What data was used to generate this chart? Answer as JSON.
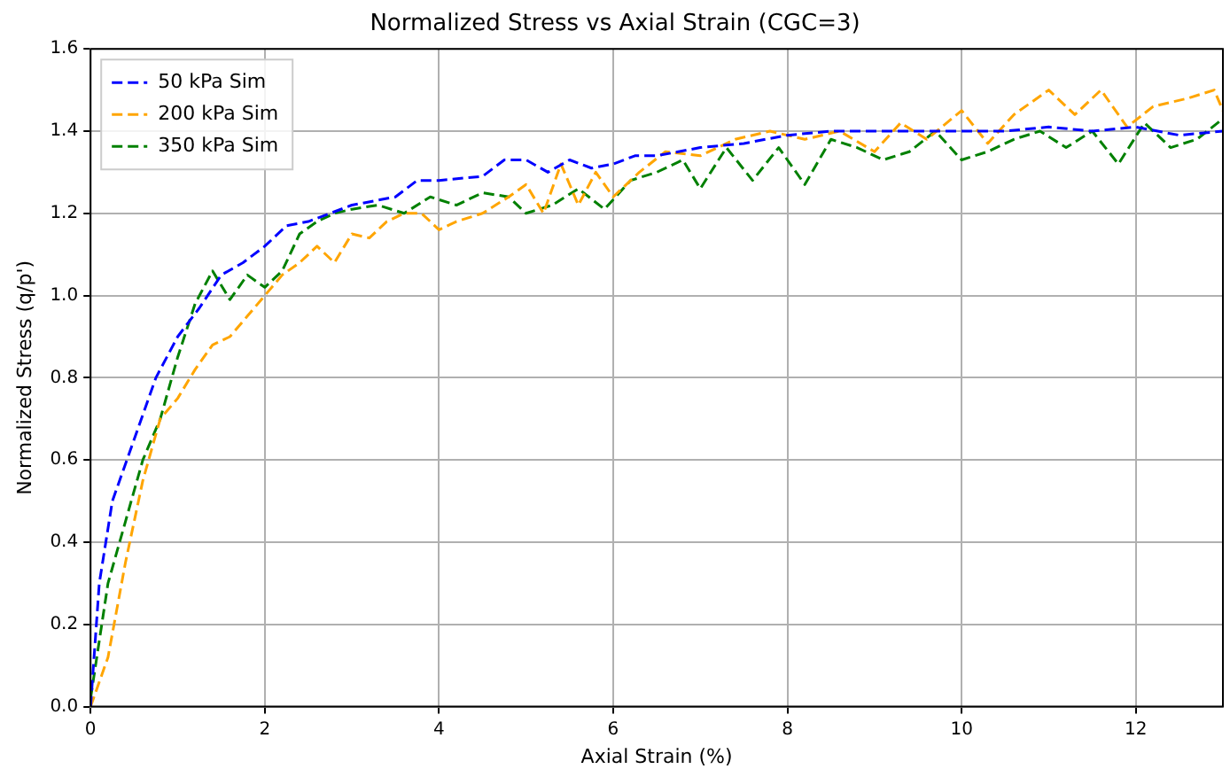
{
  "chart_data": {
    "type": "line",
    "title": "Normalized Stress vs Axial Strain (CGC=3)",
    "xlabel": "Axial Strain (%)",
    "ylabel": "Normalized Stress (q/p')",
    "xlim": [
      0,
      13
    ],
    "xticks": [
      0,
      2,
      4,
      6,
      8,
      10,
      12
    ],
    "ylim": [
      0,
      1.6
    ],
    "yticks": [
      {
        "value": 0,
        "label": "0.0"
      },
      0.2,
      0.4,
      0.6,
      0.8,
      {
        "value": 1,
        "label": "1.0"
      },
      1.2,
      1.4,
      1.6
    ],
    "grid": true,
    "legend": "top left",
    "line_style": "dashed",
    "marker": "none",
    "series": [
      {
        "name": "50 kPa Sim",
        "color": "#0000ff",
        "x": [
          0,
          0.1,
          0.25,
          0.5,
          0.75,
          1.0,
          1.25,
          1.5,
          1.75,
          2.0,
          2.25,
          2.5,
          3.0,
          3.5,
          3.75,
          4.0,
          4.5,
          4.75,
          5.0,
          5.25,
          5.5,
          5.75,
          6.0,
          6.25,
          6.5,
          7.0,
          7.5,
          8.0,
          8.5,
          9.0,
          9.5,
          10.0,
          10.5,
          11.0,
          11.5,
          12.0,
          12.5,
          13.0
        ],
        "values": [
          0,
          0.3,
          0.5,
          0.65,
          0.8,
          0.9,
          0.97,
          1.05,
          1.08,
          1.12,
          1.17,
          1.18,
          1.22,
          1.24,
          1.28,
          1.28,
          1.29,
          1.33,
          1.33,
          1.3,
          1.33,
          1.31,
          1.32,
          1.34,
          1.34,
          1.36,
          1.37,
          1.39,
          1.4,
          1.4,
          1.4,
          1.4,
          1.4,
          1.41,
          1.4,
          1.41,
          1.39,
          1.4
        ]
      },
      {
        "name": "200 kPa Sim",
        "color": "#ffa500",
        "x": [
          0,
          0.2,
          0.4,
          0.6,
          0.8,
          1.0,
          1.2,
          1.4,
          1.6,
          1.8,
          2.0,
          2.2,
          2.4,
          2.6,
          2.8,
          3.0,
          3.2,
          3.4,
          3.6,
          3.8,
          4.0,
          4.2,
          4.5,
          4.8,
          5.0,
          5.2,
          5.4,
          5.6,
          5.8,
          6.0,
          6.3,
          6.6,
          7.0,
          7.4,
          7.8,
          8.2,
          8.6,
          9.0,
          9.3,
          9.6,
          10.0,
          10.3,
          10.6,
          11.0,
          11.3,
          11.6,
          11.9,
          12.2,
          12.6,
          12.9,
          13.0
        ],
        "values": [
          0,
          0.12,
          0.35,
          0.55,
          0.7,
          0.75,
          0.82,
          0.88,
          0.9,
          0.95,
          1.0,
          1.05,
          1.08,
          1.12,
          1.08,
          1.15,
          1.14,
          1.18,
          1.2,
          1.2,
          1.16,
          1.18,
          1.2,
          1.24,
          1.27,
          1.2,
          1.32,
          1.22,
          1.3,
          1.24,
          1.3,
          1.35,
          1.34,
          1.38,
          1.4,
          1.38,
          1.4,
          1.35,
          1.42,
          1.38,
          1.45,
          1.37,
          1.44,
          1.5,
          1.44,
          1.5,
          1.41,
          1.46,
          1.48,
          1.5,
          1.45
        ]
      },
      {
        "name": "350 kPa Sim",
        "color": "#008000",
        "x": [
          0,
          0.2,
          0.4,
          0.6,
          0.8,
          1.0,
          1.2,
          1.4,
          1.6,
          1.8,
          2.0,
          2.2,
          2.4,
          2.6,
          2.8,
          3.0,
          3.3,
          3.6,
          3.9,
          4.2,
          4.5,
          4.8,
          5.0,
          5.3,
          5.6,
          5.9,
          6.2,
          6.5,
          6.8,
          7.0,
          7.3,
          7.6,
          7.9,
          8.2,
          8.5,
          8.8,
          9.1,
          9.4,
          9.7,
          10.0,
          10.3,
          10.6,
          10.9,
          11.2,
          11.5,
          11.8,
          12.1,
          12.4,
          12.7,
          13.0
        ],
        "values": [
          0.02,
          0.3,
          0.45,
          0.6,
          0.7,
          0.85,
          0.98,
          1.06,
          0.99,
          1.05,
          1.02,
          1.06,
          1.15,
          1.18,
          1.2,
          1.21,
          1.22,
          1.2,
          1.24,
          1.22,
          1.25,
          1.24,
          1.2,
          1.22,
          1.26,
          1.21,
          1.28,
          1.3,
          1.33,
          1.26,
          1.36,
          1.28,
          1.36,
          1.27,
          1.38,
          1.36,
          1.33,
          1.35,
          1.4,
          1.33,
          1.35,
          1.38,
          1.4,
          1.36,
          1.4,
          1.32,
          1.42,
          1.36,
          1.38,
          1.43
        ]
      }
    ]
  }
}
